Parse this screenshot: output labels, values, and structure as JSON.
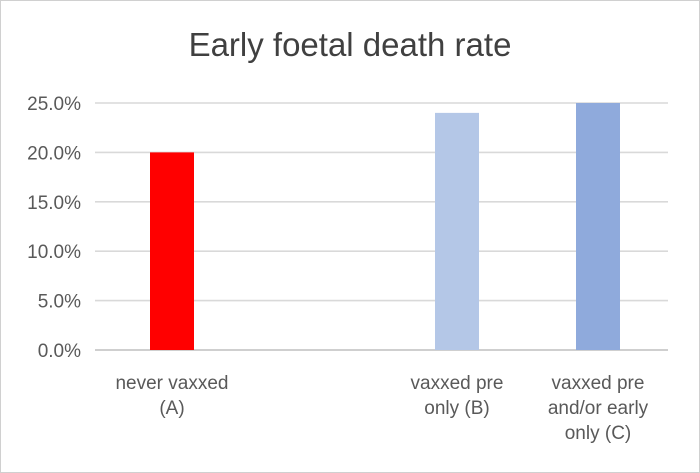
{
  "chart_data": {
    "type": "bar",
    "title": "Early foetal death rate",
    "xlabel": "",
    "ylabel": "",
    "ylim": [
      0,
      25
    ],
    "y_ticks": [
      "0.0%",
      "5.0%",
      "10.0%",
      "15.0%",
      "20.0%",
      "25.0%"
    ],
    "grid": true,
    "categories": [
      [
        "never vaxxed",
        "(A)"
      ],
      [
        "vaxxed pre",
        "only (B)"
      ],
      [
        "vaxxed pre",
        "and/or early",
        "only (C)"
      ]
    ],
    "values": [
      20,
      24,
      25
    ],
    "colors": [
      "#ff0000",
      "#b4c7e7",
      "#8faadc"
    ]
  }
}
